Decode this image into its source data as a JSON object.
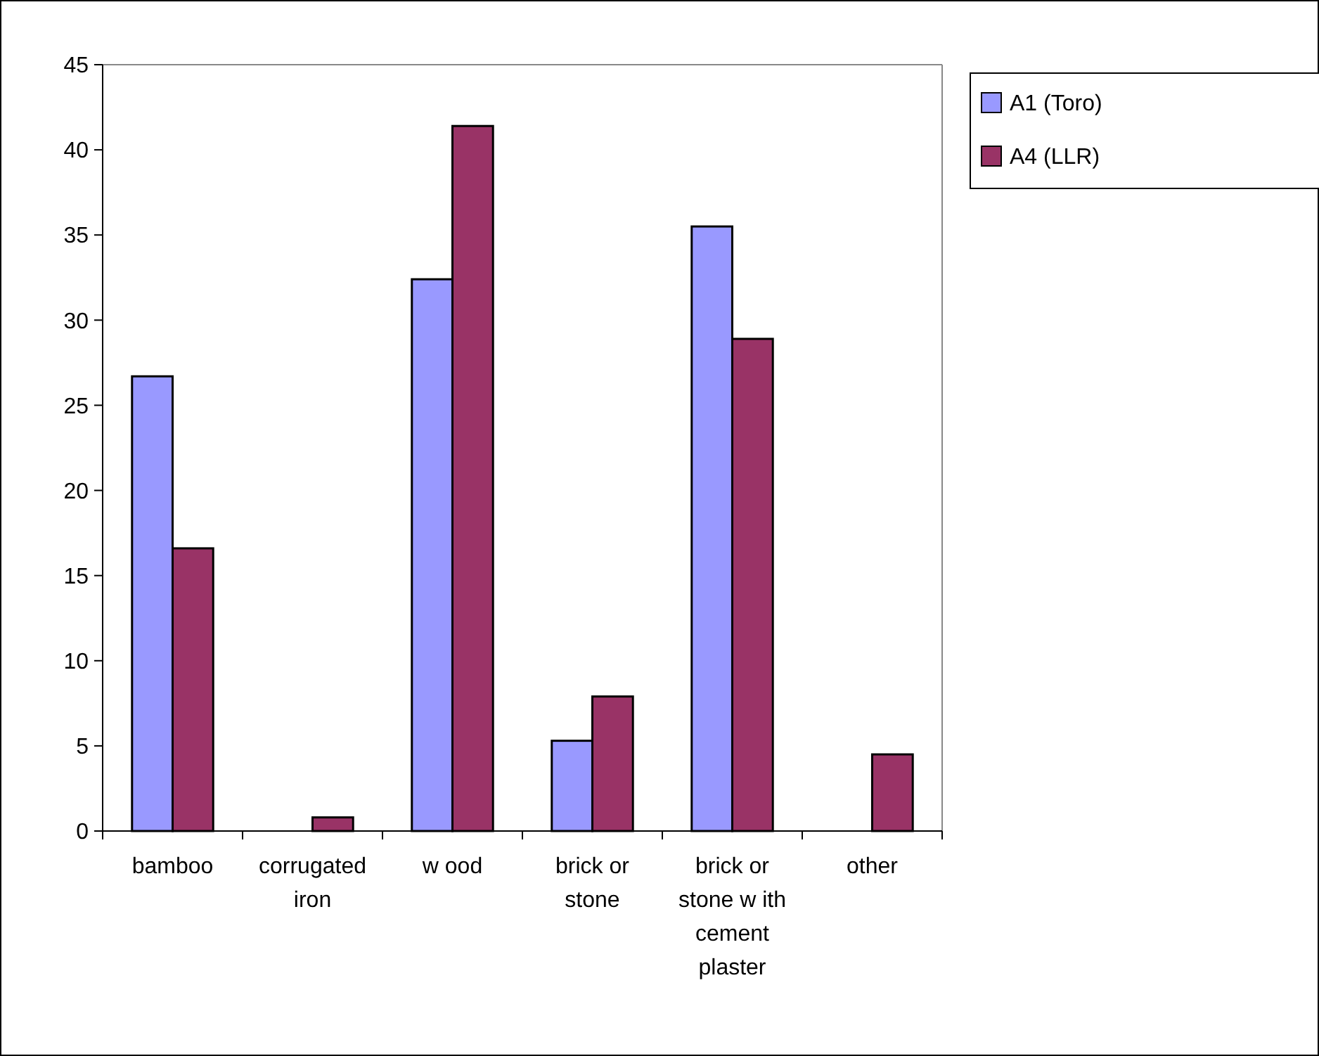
{
  "chart_data": {
    "type": "bar",
    "categories": [
      "bamboo",
      "corrugated iron",
      "w ood",
      "brick or stone",
      "brick or stone w ith cement plaster",
      "other"
    ],
    "series": [
      {
        "name": "A1 (Toro)",
        "color": "#9999ff",
        "values": [
          26.7,
          0,
          32.4,
          5.3,
          35.5,
          0
        ]
      },
      {
        "name": "A4 (LLR)",
        "color": "#993366",
        "values": [
          16.6,
          0.8,
          41.4,
          7.9,
          28.9,
          4.5
        ]
      }
    ],
    "ylim": [
      0,
      45
    ],
    "yticks": [
      0,
      5,
      10,
      15,
      20,
      25,
      30,
      35,
      40,
      45
    ],
    "grid": false,
    "legend": "top right"
  }
}
